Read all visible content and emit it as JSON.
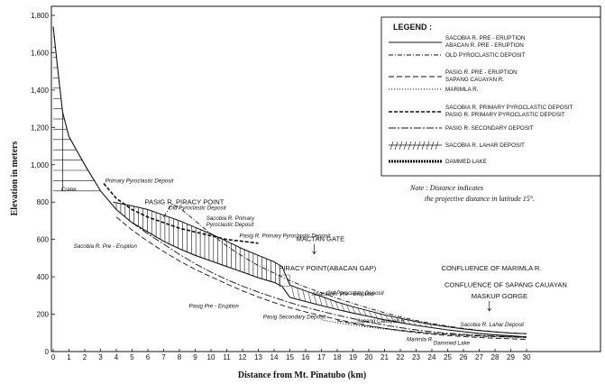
{
  "chart_data": {
    "type": "line",
    "xlabel": "Distance from Mt. Pinatubo (km)",
    "ylabel": "Elevation in meters",
    "xlim": [
      0,
      30
    ],
    "ylim": [
      0,
      1800
    ],
    "x_ticks": [
      "0",
      "1",
      "2",
      "3",
      "4",
      "5",
      "6",
      "7",
      "8",
      "9",
      "10",
      "11",
      "12",
      "13",
      "14",
      "15",
      "16",
      "17",
      "18",
      "19",
      "20",
      "21",
      "22",
      "23",
      "24",
      "25",
      "26",
      "27",
      "28",
      "29",
      "30"
    ],
    "y_ticks": [
      "0",
      "200",
      "400",
      "600",
      "800",
      "1,000",
      "1,200",
      "1,400",
      "1,600",
      "1,800"
    ],
    "grid": false,
    "legend_position": "top-right",
    "legend_title": "LEGEND :",
    "legend": [
      {
        "label": "SACOBIA R. PRE - ERUPTION\nABACAN R. PRE - ERUPTION",
        "style": "solid"
      },
      {
        "label": "OLD PYROCLASTIC DEPOSIT",
        "style": "dash-dot"
      },
      {
        "label": "PASIG R. PRE - ERUPTION\nSAPANG CAUAYAN R.",
        "style": "long-dash"
      },
      {
        "label": "MARIMLA R.",
        "style": "dotted"
      },
      {
        "label": "SACOBIA R. PRIMARY PYROCLASTIC DEPOSIT\nPASIG R. PRIMARY PYROCLASTIC DEPOSIT",
        "style": "heavy-dash"
      },
      {
        "label": "PASIG R. SECONDARY DEPOSIT",
        "style": "dash-dot-long"
      },
      {
        "label": "SACOBIA R. LAHAR DEPOSIT",
        "style": "hatched"
      },
      {
        "label": "DAMMED LAKE",
        "style": "lake"
      }
    ],
    "series": [
      {
        "name": "Sacobia R. Pre - Eruption",
        "style": "solid",
        "x": [
          0,
          0.3,
          0.6,
          1,
          2,
          3,
          4,
          5,
          6,
          7,
          8,
          9,
          10,
          11,
          12,
          13,
          14,
          14.5,
          15,
          16,
          17,
          18,
          19,
          20,
          21,
          22,
          23,
          24,
          25,
          26,
          27,
          28,
          29,
          30
        ],
        "y": [
          1740,
          1500,
          1280,
          1150,
          1000,
          860,
          760,
          690,
          640,
          590,
          550,
          515,
          485,
          455,
          425,
          395,
          370,
          350,
          290,
          268,
          246,
          225,
          206,
          188,
          170,
          155,
          140,
          128,
          116,
          106,
          97,
          90,
          84,
          78
        ]
      },
      {
        "name": "Sacobia R. Lahar Deposit",
        "style": "hatched",
        "x": [
          3.8,
          5,
          6,
          7,
          8,
          9,
          10,
          11,
          12,
          13,
          14,
          14.5,
          15,
          16,
          17,
          18,
          19,
          20,
          21,
          22,
          23,
          24,
          25,
          26,
          27,
          28,
          29,
          30
        ],
        "y": [
          800,
          780,
          760,
          730,
          700,
          665,
          630,
          590,
          550,
          515,
          480,
          455,
          355,
          325,
          295,
          265,
          240,
          218,
          196,
          178,
          160,
          145,
          132,
          121,
          112,
          105,
          99,
          95
        ]
      },
      {
        "name": "Old Pyroclastic Deposit",
        "style": "dash-dot",
        "x": [
          7,
          7.5,
          8,
          9,
          10,
          11,
          12,
          13,
          14,
          15,
          16,
          17,
          18,
          19,
          20,
          21,
          22,
          23,
          24,
          25,
          26,
          27,
          28,
          29,
          30
        ],
        "y": [
          720,
          790,
          770,
          700,
          630,
          565,
          510,
          460,
          420,
          380,
          345,
          315,
          285,
          258,
          232,
          208,
          186,
          166,
          150,
          136,
          124,
          114,
          106,
          100,
          96
        ]
      },
      {
        "name": "Pasig R. Pre - Eruption",
        "style": "long-dash",
        "x": [
          4,
          5,
          6,
          7,
          8,
          9,
          10,
          11,
          12,
          13,
          14,
          15,
          16,
          17,
          18,
          19,
          20,
          21,
          22,
          23,
          24,
          25,
          26,
          27,
          28,
          29,
          30
        ],
        "y": [
          720,
          650,
          590,
          535,
          485,
          440,
          400,
          362,
          325,
          292,
          262,
          235,
          212,
          192,
          172,
          154,
          138,
          124,
          112,
          102,
          93,
          86,
          80,
          75,
          71,
          68,
          65
        ]
      },
      {
        "name": "Sacobia R. Primary Pyroclastic Deposit",
        "style": "heavy-dash",
        "x": [
          3.2,
          4,
          5,
          6,
          7,
          8,
          9,
          10,
          11,
          12,
          13
        ],
        "y": [
          900,
          820,
          760,
          720,
          690,
          660,
          640,
          620,
          600,
          590,
          580
        ]
      },
      {
        "name": "Pasig R. Secondary Deposit",
        "style": "dash-dot-long",
        "x": [
          5,
          6,
          7,
          8,
          9,
          10,
          11,
          12,
          13,
          14,
          15,
          16,
          17,
          18,
          19,
          20,
          21,
          22,
          23,
          24,
          25,
          26,
          27,
          28,
          29,
          30
        ],
        "y": [
          690,
          630,
          575,
          520,
          470,
          425,
          385,
          350,
          318,
          290,
          262,
          238,
          215,
          195,
          176,
          158,
          142,
          128,
          116,
          106,
          98,
          92,
          87,
          83,
          80,
          78
        ]
      },
      {
        "name": "Marimla R.",
        "style": "dotted",
        "x": [
          17,
          18,
          19,
          20,
          21,
          22,
          23,
          24,
          25,
          26,
          27,
          28,
          29,
          30
        ],
        "y": [
          170,
          155,
          142,
          130,
          120,
          111,
          103,
          96,
          90,
          85,
          81,
          78,
          76,
          74
        ]
      },
      {
        "name": "Sapang Cauayan R.",
        "style": "long-dash",
        "x": [
          18,
          19,
          20,
          21,
          22,
          23,
          24,
          25,
          26,
          27,
          28,
          29,
          30
        ],
        "y": [
          165,
          150,
          136,
          124,
          114,
          106,
          99,
          93,
          88,
          84,
          80,
          78,
          76
        ]
      }
    ],
    "dammed_lake": {
      "x": [
        14.3,
        15
      ],
      "y": [
        350,
        410
      ]
    },
    "crater_hatch": {
      "x": [
        0,
        0.6
      ],
      "y_top": [
        1740,
        1280
      ],
      "y_bottom": 860
    },
    "annotations": [
      {
        "text": "Crater",
        "x": 0.5,
        "y": 860
      },
      {
        "text": "Primary Pyroclastic Deposit",
        "x": 3.3,
        "y": 905
      },
      {
        "text": "Old Pyroclastic Deposit",
        "x": 7.3,
        "y": 760
      },
      {
        "text": "Sacobia R. Primary",
        "x": 9.7,
        "y": 705
      },
      {
        "text": "Pyroclastic Deposit",
        "x": 9.7,
        "y": 670
      },
      {
        "text": "Pasig R. Primary Pyroclastic Deposit",
        "x": 11.8,
        "y": 610
      },
      {
        "text": "Sacobia R. Pre - Eruption",
        "x": 1.3,
        "y": 555
      },
      {
        "text": "Old Pyroclastic Deposit",
        "x": 17.3,
        "y": 305
      },
      {
        "text": "Abacan R. Pre - Eruption",
        "x": 16.4,
        "y": 300
      },
      {
        "text": "Pasig Pre - Eruption",
        "x": 8.6,
        "y": 235
      },
      {
        "text": "Pasig Secondary Deposit",
        "x": 13.3,
        "y": 175
      },
      {
        "text": "Sapang Cauayan R.",
        "x": 19.2,
        "y": 155
      },
      {
        "text": "Sacobia R. Lahar Deposit",
        "x": 25.8,
        "y": 135
      },
      {
        "text": "Marimla R.",
        "x": 22.4,
        "y": 55
      },
      {
        "text": "Dammed Lake",
        "x": 24.1,
        "y": 35
      }
    ],
    "labels": [
      {
        "text": "PASIG R. PIRACY POINT",
        "x": 5.8,
        "y": 790,
        "arrow": false
      },
      {
        "text": "MACTAN GATE",
        "x": 15.4,
        "y": 590,
        "arrow": true
      },
      {
        "text": "PIRACY POINT(ABACAN GAP)",
        "x": 14.3,
        "y": 435,
        "arrow": false
      },
      {
        "text": "CONFLUENCE OF MARIMLA R.",
        "x": 24.6,
        "y": 435,
        "arrow": false
      },
      {
        "text": "CONFLUENCE OF SAPANG CAUAYAN",
        "x": 24.8,
        "y": 345,
        "arrow": false
      },
      {
        "text": "MASKUP GORGE",
        "x": 26.5,
        "y": 285,
        "arrow": true
      }
    ],
    "note": "Note : Distance indicates the projective distance in latitude 15°."
  }
}
